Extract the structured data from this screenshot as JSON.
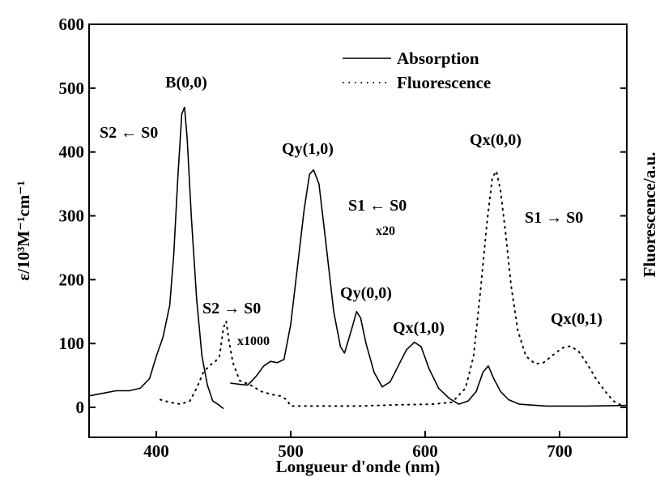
{
  "chart_data": {
    "type": "line",
    "xlabel": "Longueur d'onde (nm)",
    "ylabel_left": "ε/10³M⁻¹cm⁻¹",
    "ylabel_right": "Fluorescence/a.u.",
    "xlim": [
      350,
      750
    ],
    "ylim": [
      0,
      600
    ],
    "x_ticks": [
      400,
      500,
      600,
      700
    ],
    "y_ticks": [
      0,
      100,
      200,
      300,
      400,
      500,
      600
    ],
    "grid": false,
    "legend_position": "top-right",
    "series": [
      {
        "name": "Absorption",
        "style": "solid",
        "points": [
          [
            350,
            18
          ],
          [
            360,
            22
          ],
          [
            370,
            26
          ],
          [
            380,
            26
          ],
          [
            388,
            30
          ],
          [
            395,
            45
          ],
          [
            400,
            80
          ],
          [
            405,
            110
          ],
          [
            410,
            160
          ],
          [
            413,
            240
          ],
          [
            416,
            360
          ],
          [
            419,
            460
          ],
          [
            421,
            470
          ],
          [
            423,
            420
          ],
          [
            426,
            300
          ],
          [
            430,
            170
          ],
          [
            434,
            80
          ],
          [
            438,
            35
          ],
          [
            442,
            10
          ],
          [
            447,
            3
          ],
          [
            450,
            -2
          ]
        ]
      },
      {
        "name": "Absorption",
        "style": "solid",
        "points": [
          [
            455,
            38
          ],
          [
            462,
            36
          ],
          [
            468,
            35
          ],
          [
            474,
            48
          ],
          [
            480,
            65
          ],
          [
            485,
            72
          ],
          [
            490,
            70
          ],
          [
            495,
            75
          ],
          [
            500,
            130
          ],
          [
            505,
            220
          ],
          [
            510,
            310
          ],
          [
            514,
            365
          ],
          [
            517,
            372
          ],
          [
            521,
            350
          ],
          [
            526,
            260
          ],
          [
            532,
            150
          ],
          [
            537,
            95
          ],
          [
            540,
            85
          ],
          [
            545,
            120
          ],
          [
            549,
            150
          ],
          [
            552,
            140
          ],
          [
            556,
            100
          ],
          [
            562,
            55
          ],
          [
            568,
            32
          ],
          [
            574,
            40
          ],
          [
            580,
            65
          ],
          [
            586,
            90
          ],
          [
            592,
            102
          ],
          [
            597,
            95
          ],
          [
            603,
            60
          ],
          [
            610,
            30
          ],
          [
            618,
            14
          ],
          [
            625,
            5
          ],
          [
            632,
            10
          ],
          [
            638,
            25
          ],
          [
            643,
            55
          ],
          [
            647,
            65
          ],
          [
            651,
            45
          ],
          [
            656,
            25
          ],
          [
            662,
            12
          ],
          [
            670,
            5
          ],
          [
            690,
            2
          ],
          [
            720,
            2
          ],
          [
            750,
            3
          ]
        ]
      },
      {
        "name": "Fluorescence",
        "style": "dotted",
        "points": [
          [
            403,
            12
          ],
          [
            410,
            8
          ],
          [
            418,
            5
          ],
          [
            425,
            10
          ],
          [
            430,
            30
          ],
          [
            435,
            55
          ],
          [
            440,
            66
          ],
          [
            444,
            72
          ],
          [
            447,
            80
          ],
          [
            450,
            125
          ],
          [
            452,
            135
          ],
          [
            454,
            105
          ],
          [
            457,
            70
          ],
          [
            462,
            42
          ],
          [
            470,
            35
          ],
          [
            478,
            25
          ],
          [
            486,
            20
          ],
          [
            492,
            18
          ],
          [
            497,
            12
          ],
          [
            500,
            2
          ],
          [
            520,
            2
          ],
          [
            550,
            2
          ],
          [
            580,
            4
          ],
          [
            605,
            5
          ],
          [
            620,
            8
          ],
          [
            630,
            30
          ],
          [
            636,
            80
          ],
          [
            641,
            180
          ],
          [
            646,
            290
          ],
          [
            650,
            360
          ],
          [
            653,
            370
          ],
          [
            656,
            340
          ],
          [
            660,
            270
          ],
          [
            664,
            190
          ],
          [
            669,
            120
          ],
          [
            675,
            80
          ],
          [
            682,
            68
          ],
          [
            688,
            70
          ],
          [
            695,
            82
          ],
          [
            702,
            93
          ],
          [
            708,
            96
          ],
          [
            714,
            88
          ],
          [
            720,
            70
          ],
          [
            727,
            45
          ],
          [
            734,
            25
          ],
          [
            740,
            10
          ],
          [
            746,
            3
          ]
        ]
      }
    ],
    "annotations": {
      "b00": "B(0,0)",
      "s2s0_abs": "S2 ← S0",
      "qy10": "Qy(1,0)",
      "s1s0_abs": "S1 ← S0",
      "x20": "x20",
      "qx00": "Qx(0,0)",
      "s1s0_fluo": "S1 → S0",
      "s2s0_fluo": "S2 → S0",
      "x1000": "x1000",
      "qy00": "Qy(0,0)",
      "qx10": "Qx(1,0)",
      "qx01": "Qx(0,1)"
    }
  }
}
